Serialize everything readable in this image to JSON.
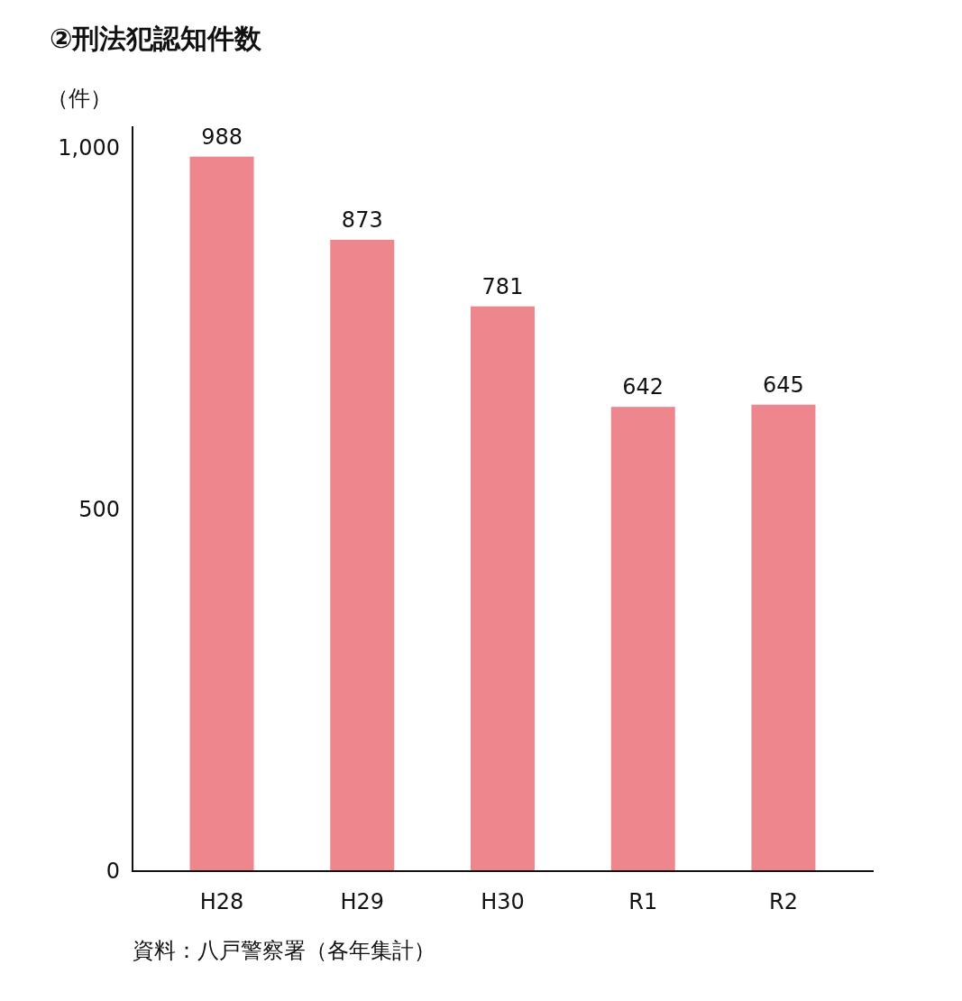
{
  "chart_data": {
    "type": "bar",
    "title": "②刑法犯認知件数",
    "ylabel": "（件）",
    "categories": [
      "H28",
      "H29",
      "H30",
      "R1",
      "R2"
    ],
    "values": [
      988,
      873,
      781,
      642,
      645
    ],
    "color": "#ee868e",
    "ylim": [
      0,
      1030
    ],
    "yticks": [
      0,
      500,
      {
        "value": 1000,
        "label": "1,000"
      }
    ],
    "grid": false,
    "data_labels": true,
    "annotations": [
      "資料：八戸警察署（各年集計）"
    ]
  }
}
